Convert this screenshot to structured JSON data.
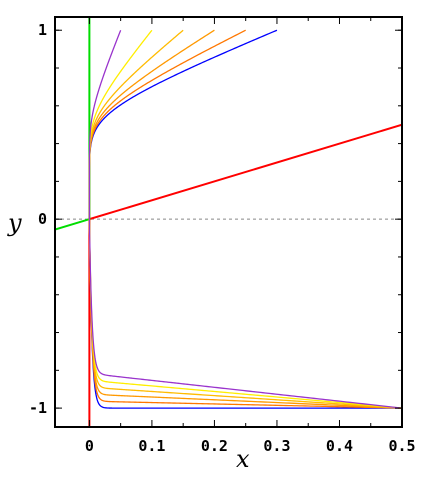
{
  "chart_data": {
    "type": "line",
    "title": "",
    "xlabel": "x",
    "ylabel": "y",
    "xlim": [
      -0.055,
      0.5
    ],
    "ylim": [
      -1.1,
      1.07
    ],
    "x_ticks": [
      0,
      0.1,
      0.2,
      0.3,
      0.4,
      0.5
    ],
    "x_tick_labels": [
      "0",
      "0.1",
      "0.2",
      "0.3",
      "0.4",
      "0.5"
    ],
    "y_ticks": [
      -1,
      0,
      1
    ],
    "y_tick_labels": [
      "-1",
      "0",
      "1"
    ],
    "grid": false,
    "legend": "none",
    "reference_line": {
      "y": 0,
      "style": "dashed",
      "color": "#888888"
    },
    "series": [
      {
        "color": "#ff0000",
        "points": [
          [
            0,
            -1.1
          ],
          [
            0,
            0
          ],
          [
            0.5,
            0.5
          ]
        ]
      },
      {
        "color": "#00dd00",
        "points": [
          [
            -0.055,
            -0.055
          ],
          [
            0,
            0
          ],
          [
            0,
            1.07
          ]
        ]
      },
      {
        "color": "#0000ff",
        "family": "hyperbola",
        "k": 0.3
      },
      {
        "color": "#ff7700",
        "family": "hyperbola",
        "k": 0.25
      },
      {
        "color": "#ff9900",
        "family": "hyperbola",
        "k": 0.2
      },
      {
        "color": "#ffbb00",
        "family": "hyperbola",
        "k": 0.15
      },
      {
        "color": "#ffee00",
        "family": "hyperbola",
        "k": 0.1
      },
      {
        "color": "#9933cc",
        "family": "hyperbola",
        "k": 0.05
      }
    ]
  }
}
